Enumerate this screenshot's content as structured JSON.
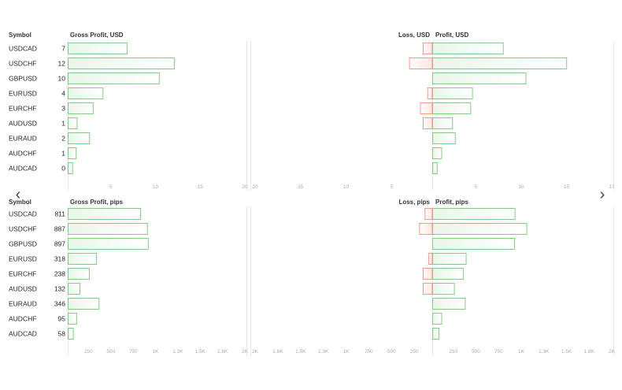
{
  "colors": {
    "profit_stroke": "#86c986",
    "profit_fill_a": "#eef8ee",
    "profit_fill_b": "#ffffff",
    "loss_stroke": "#ef9a8a",
    "loss_fill": "#fde3dd",
    "grid": "#e9e9e9",
    "tick_text": "#aaaaaa"
  },
  "nav": {
    "prev_icon": "‹",
    "next_icon": "›"
  },
  "chart_data": [
    {
      "type": "bar",
      "unit": "USD",
      "symbol_header": "Symbol",
      "gross_header": "Gross Profit, USD",
      "loss_header": "Loss, USD",
      "profit_header": "Profit, USD",
      "categories": [
        "USDCAD",
        "USDCHF",
        "GBPUSD",
        "EURUSD",
        "EURCHF",
        "AUDUSD",
        "EURAUD",
        "AUDCHF",
        "AUDCAD"
      ],
      "trade_counts": [
        7,
        12,
        10,
        4,
        3,
        1,
        2,
        1,
        0
      ],
      "gross_profit": [
        6.6,
        11.9,
        10.2,
        3.9,
        2.8,
        1.0,
        2.4,
        0.9,
        0.5
      ],
      "loss": [
        1.0,
        2.5,
        0,
        0.5,
        1.3,
        1.0,
        0,
        0,
        0
      ],
      "profit": [
        7.8,
        14.8,
        10.3,
        4.4,
        4.2,
        2.2,
        2.5,
        1.0,
        0.5
      ],
      "gross_ticks": [
        "5",
        "10",
        "15",
        "20"
      ],
      "gross_max": 20,
      "loss_ticks": [
        "20",
        "15",
        "10",
        "5"
      ],
      "loss_max": 20,
      "profit_ticks": [
        "5",
        "10",
        "15",
        "17"
      ],
      "profit_max": 20
    },
    {
      "type": "bar",
      "unit": "pips",
      "symbol_header": "Symbol",
      "gross_header": "Gross Profit, pips",
      "loss_header": "Loss, pips",
      "profit_header": "Profit, pips",
      "categories": [
        "USDCAD",
        "USDCHF",
        "GBPUSD",
        "EURUSD",
        "EURCHF",
        "AUDUSD",
        "EURAUD",
        "AUDCHF",
        "AUDCAD"
      ],
      "trade_counts": [
        811,
        887,
        897,
        318,
        238,
        132,
        346,
        95,
        58
      ],
      "gross_profit": [
        811,
        887,
        897,
        318,
        238,
        132,
        346,
        95,
        58
      ],
      "loss": [
        80,
        140,
        0,
        40,
        100,
        100,
        0,
        0,
        0
      ],
      "profit": [
        910,
        1040,
        905,
        370,
        340,
        240,
        360,
        100,
        70
      ],
      "gross_ticks": [
        "250",
        "500",
        "750",
        "1K",
        "1.3K",
        "1.5K",
        "1.8K",
        "2K"
      ],
      "gross_max": 2000,
      "loss_ticks": [
        "2K",
        "1.8K",
        "1.5K",
        "1.3K",
        "1K",
        "750",
        "500",
        "250"
      ],
      "loss_max": 2000,
      "profit_ticks": [
        "250",
        "500",
        "750",
        "1K",
        "1.3K",
        "1.5K",
        "1.8K",
        "2K"
      ],
      "profit_max": 2000
    }
  ]
}
